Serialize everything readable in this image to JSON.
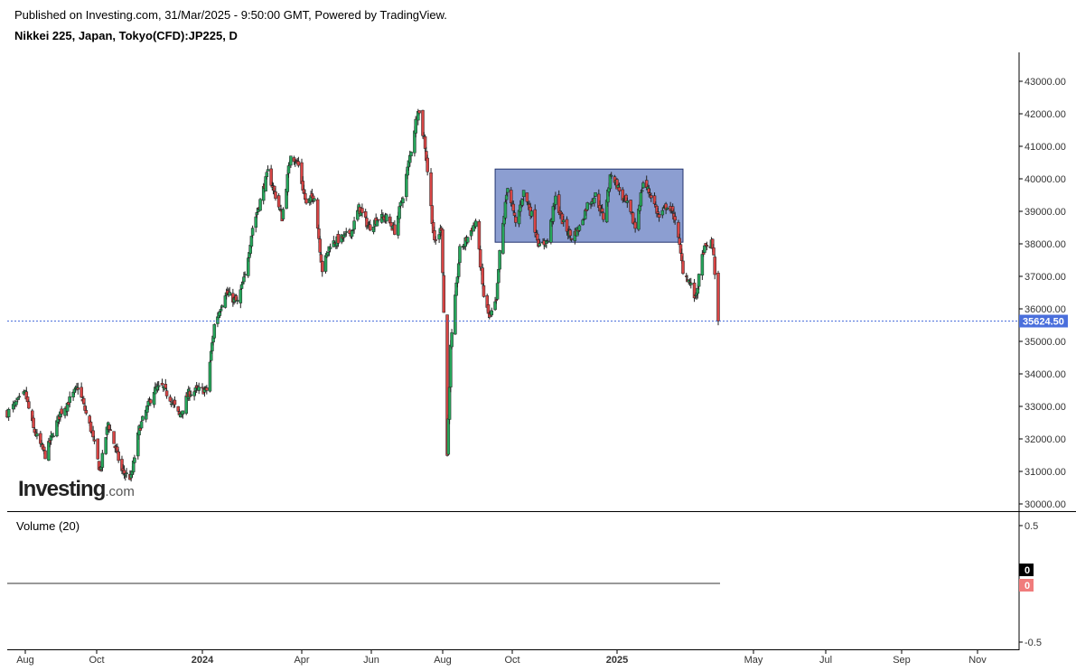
{
  "header": {
    "published": "Published on Investing.com, 31/Mar/2025 - 9:50:00 GMT, Powered by TradingView.",
    "symbol": "Nikkei 225, Japan, Tokyo(CFD):JP225, D"
  },
  "logo": {
    "brand": "Investing",
    "dotcom": ".com"
  },
  "volume": {
    "title": "Volume (20)",
    "ticks": [
      "0.5",
      "-0.5"
    ],
    "last_up": "0",
    "last_down": "0"
  },
  "colors": {
    "up": "#26a65b",
    "down": "#d84545",
    "price_label": "#4a6fdc",
    "zone_fill": "#6f86c6",
    "zone_stroke": "#23346e",
    "volume_down": "#f07c7c"
  },
  "chart_data": {
    "type": "candlestick",
    "ylim": [
      29800,
      43500
    ],
    "y_ticks": [
      "43000.00",
      "42000.00",
      "41000.00",
      "40000.00",
      "39000.00",
      "38000.00",
      "37000.00",
      "36000.00",
      "35000.00",
      "34000.00",
      "33000.00",
      "32000.00",
      "31000.00",
      "30000.00"
    ],
    "x_ticks": [
      {
        "label": "Aug",
        "date": "2023-08-01",
        "bold": false
      },
      {
        "label": "Oct",
        "date": "2023-10-01",
        "bold": false
      },
      {
        "label": "2024",
        "date": "2024-01-01",
        "bold": true
      },
      {
        "label": "Apr",
        "date": "2024-04-01",
        "bold": false
      },
      {
        "label": "Jun",
        "date": "2024-06-01",
        "bold": false
      },
      {
        "label": "Aug",
        "date": "2024-08-01",
        "bold": false
      },
      {
        "label": "Oct",
        "date": "2024-10-01",
        "bold": false
      },
      {
        "label": "2025",
        "date": "2025-01-01",
        "bold": true
      },
      {
        "label": "May",
        "date": "2025-05-01",
        "bold": false
      },
      {
        "label": "Jul",
        "date": "2025-07-01",
        "bold": false
      },
      {
        "label": "Sep",
        "date": "2025-09-01",
        "bold": false
      },
      {
        "label": "Nov",
        "date": "2025-11-01",
        "bold": false
      }
    ],
    "last_price": 35624.5,
    "last_price_label": "35624.50",
    "range_box": {
      "start": "2024-09-16",
      "end": "2025-02-28",
      "top": 40300,
      "bottom": 38050
    },
    "anchors": [
      [
        "2023-07-20",
        32800
      ],
      [
        "2023-08-01",
        33400
      ],
      [
        "2023-08-08",
        32300
      ],
      [
        "2023-08-18",
        31500
      ],
      [
        "2023-08-31",
        32800
      ],
      [
        "2023-09-08",
        33200
      ],
      [
        "2023-09-15",
        33600
      ],
      [
        "2023-09-26",
        32300
      ],
      [
        "2023-10-04",
        31000
      ],
      [
        "2023-10-11",
        32500
      ],
      [
        "2023-10-23",
        31000
      ],
      [
        "2023-10-31",
        30800
      ],
      [
        "2023-11-07",
        32300
      ],
      [
        "2023-11-20",
        33500
      ],
      [
        "2023-11-27",
        33600
      ],
      [
        "2023-12-05",
        33200
      ],
      [
        "2023-12-12",
        32700
      ],
      [
        "2023-12-20",
        33400
      ],
      [
        "2023-12-28",
        33500
      ],
      [
        "2024-01-05",
        33500
      ],
      [
        "2024-01-12",
        35500
      ],
      [
        "2024-01-22",
        36500
      ],
      [
        "2024-02-02",
        36200
      ],
      [
        "2024-02-09",
        37000
      ],
      [
        "2024-02-16",
        38500
      ],
      [
        "2024-02-22",
        39200
      ],
      [
        "2024-03-01",
        40200
      ],
      [
        "2024-03-07",
        39600
      ],
      [
        "2024-03-14",
        38800
      ],
      [
        "2024-03-22",
        40800
      ],
      [
        "2024-03-29",
        40400
      ],
      [
        "2024-04-05",
        39200
      ],
      [
        "2024-04-12",
        39500
      ],
      [
        "2024-04-19",
        37200
      ],
      [
        "2024-04-26",
        38000
      ],
      [
        "2024-05-08",
        38200
      ],
      [
        "2024-05-15",
        38400
      ],
      [
        "2024-05-21",
        39100
      ],
      [
        "2024-05-30",
        38500
      ],
      [
        "2024-06-07",
        38800
      ],
      [
        "2024-06-14",
        38800
      ],
      [
        "2024-06-21",
        38400
      ],
      [
        "2024-06-28",
        39500
      ],
      [
        "2024-07-05",
        40900
      ],
      [
        "2024-07-11",
        42200
      ],
      [
        "2024-07-17",
        41000
      ],
      [
        "2024-07-25",
        38000
      ],
      [
        "2024-07-31",
        38500
      ],
      [
        "2024-08-02",
        35900
      ],
      [
        "2024-08-05",
        31500
      ],
      [
        "2024-08-08",
        34800
      ],
      [
        "2024-08-16",
        37800
      ],
      [
        "2024-08-23",
        38200
      ],
      [
        "2024-08-30",
        38700
      ],
      [
        "2024-09-06",
        36400
      ],
      [
        "2024-09-11",
        35700
      ],
      [
        "2024-09-17",
        36200
      ],
      [
        "2024-09-20",
        37700
      ],
      [
        "2024-09-27",
        39800
      ],
      [
        "2024-10-04",
        38600
      ],
      [
        "2024-10-11",
        39600
      ],
      [
        "2024-10-18",
        38900
      ],
      [
        "2024-10-25",
        37900
      ],
      [
        "2024-11-01",
        38100
      ],
      [
        "2024-11-08",
        39400
      ],
      [
        "2024-11-15",
        38600
      ],
      [
        "2024-11-22",
        38200
      ],
      [
        "2024-11-29",
        38500
      ],
      [
        "2024-12-06",
        39200
      ],
      [
        "2024-12-13",
        39500
      ],
      [
        "2024-12-20",
        38800
      ],
      [
        "2024-12-27",
        40200
      ],
      [
        "2025-01-06",
        39400
      ],
      [
        "2025-01-10",
        39200
      ],
      [
        "2025-01-17",
        38500
      ],
      [
        "2025-01-24",
        39900
      ],
      [
        "2025-01-31",
        39500
      ],
      [
        "2025-02-07",
        38800
      ],
      [
        "2025-02-14",
        39200
      ],
      [
        "2025-02-21",
        38800
      ],
      [
        "2025-02-28",
        37200
      ],
      [
        "2025-03-06",
        36800
      ],
      [
        "2025-03-11",
        36300
      ],
      [
        "2025-03-18",
        37800
      ],
      [
        "2025-03-25",
        38000
      ],
      [
        "2025-03-27",
        37700
      ],
      [
        "2025-03-28",
        37100
      ],
      [
        "2025-03-31",
        35624.5
      ]
    ]
  }
}
